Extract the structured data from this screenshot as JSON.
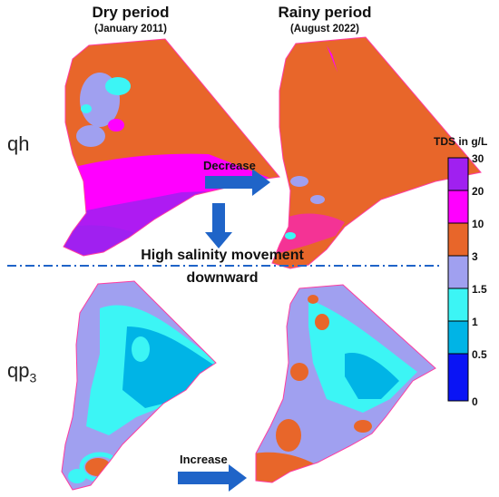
{
  "columns": {
    "dry": {
      "title": "Dry period",
      "subtitle": "(January 2011)"
    },
    "rainy": {
      "title": "Rainy period",
      "subtitle": "(August 2022)"
    }
  },
  "rows": {
    "qh": "qh",
    "qp3_base": "qp",
    "qp3_sub": "3"
  },
  "arrows": {
    "decrease": "Decrease",
    "increase": "Increase"
  },
  "message": {
    "line1": "High salinity movement",
    "line2": "downward"
  },
  "legend": {
    "title": "TDS in g/L",
    "ticks": [
      "30",
      "20",
      "10",
      "3",
      "1.5",
      "1",
      "0.5",
      "0"
    ],
    "colors": [
      "#a020f0",
      "#ff00ff",
      "#e8662a",
      "#a0a0f0",
      "#3cf5f5",
      "#00b4e6",
      "#0a14f5"
    ]
  },
  "colors": {
    "arrow": "#1f64c8",
    "divider": "#1f64c8",
    "outline": "#ff3ca0"
  }
}
